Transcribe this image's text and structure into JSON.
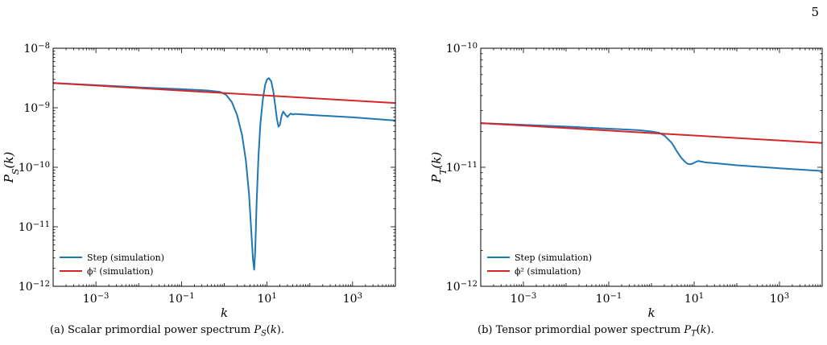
{
  "page_number": "5",
  "colors": {
    "step": "#1f77b4",
    "phi2": "#d62728"
  },
  "captions": {
    "a": "(a) Scalar primordial power spectrum P_S(k).",
    "b": "(b) Tensor primordial power spectrum P_T(k)."
  },
  "chart_data": [
    {
      "type": "line",
      "panel": "a",
      "xlabel": "k",
      "ylabel": "P_S(k)",
      "x_scale": "log",
      "y_scale": "log",
      "xlim": [
        0.0001,
        10000
      ],
      "ylim": [
        1e-12,
        1e-08
      ],
      "x_ticks": [
        0.001,
        0.1,
        10,
        1000
      ],
      "x_tick_labels": [
        "10^{-3}",
        "10^{-1}",
        "10^{1}",
        "10^{3}"
      ],
      "y_ticks": [
        1e-12,
        1e-11,
        1e-10,
        1e-09,
        1e-08
      ],
      "y_tick_labels": [
        "10^{-12}",
        "10^{-11}",
        "10^{-10}",
        "10^{-9}",
        "10^{-8}"
      ],
      "grid": false,
      "legend": "lower-left",
      "series": [
        {
          "name": "Step (simulation)",
          "color": "#1f77b4",
          "x": [
            0.0001,
            0.001,
            0.01,
            0.1,
            0.4,
            0.8,
            1.1,
            1.5,
            2.0,
            2.6,
            3.2,
            3.8,
            4.3,
            4.7,
            5.0,
            5.3,
            5.7,
            6.3,
            7.0,
            8.0,
            9.0,
            10.0,
            11.0,
            12.5,
            14.0,
            15.5,
            17.0,
            18.5,
            20.0,
            22.0,
            24.0,
            27.0,
            30.0,
            33.0,
            36.0,
            40.0,
            45.0,
            55.0,
            100.0,
            1000.0,
            10000.0
          ],
          "y": [
            2.6e-09,
            2.4e-09,
            2.2e-09,
            2.05e-09,
            1.95e-09,
            1.85e-09,
            1.65e-09,
            1.25e-09,
            7.5e-10,
            3.5e-10,
            1.3e-10,
            3.5e-11,
            8e-12,
            2.8e-12,
            1.9e-12,
            4e-12,
            2.5e-11,
            1.5e-10,
            5.5e-10,
            1.4e-09,
            2.4e-09,
            3e-09,
            3.15e-09,
            2.8e-09,
            1.9e-09,
            1.1e-09,
            6.5e-10,
            4.8e-10,
            5.2e-10,
            7.5e-10,
            8.6e-10,
            7.6e-10,
            7e-10,
            7.6e-10,
            8e-10,
            7.7e-10,
            7.9e-10,
            7.8e-10,
            7.6e-10,
            6.9e-10,
            6.1e-10
          ]
        },
        {
          "name": "ϕ² (simulation)",
          "color": "#d62728",
          "x": [
            0.0001,
            10000
          ],
          "y": [
            2.6e-09,
            1.2e-09
          ]
        }
      ]
    },
    {
      "type": "line",
      "panel": "b",
      "xlabel": "k",
      "ylabel": "P_T(k)",
      "x_scale": "log",
      "y_scale": "log",
      "xlim": [
        0.0001,
        10000
      ],
      "ylim": [
        1e-12,
        1e-10
      ],
      "x_ticks": [
        0.001,
        0.1,
        10,
        1000
      ],
      "x_tick_labels": [
        "10^{-3}",
        "10^{-1}",
        "10^{1}",
        "10^{3}"
      ],
      "y_ticks": [
        1e-12,
        1e-11,
        1e-10
      ],
      "y_tick_labels": [
        "10^{-12}",
        "10^{-11}",
        "10^{-10}"
      ],
      "grid": false,
      "legend": "lower-left",
      "series": [
        {
          "name": "Step (simulation)",
          "color": "#1f77b4",
          "x": [
            0.0001,
            0.01,
            0.5,
            1.0,
            1.5,
            2.0,
            3.0,
            4.0,
            5.0,
            6.0,
            7.0,
            8.0,
            9.0,
            10.0,
            11.0,
            12.5,
            14.0,
            16.0,
            18.0,
            25.0,
            100.0,
            1000.0,
            10000.0
          ],
          "y": [
            2.35e-11,
            2.2e-11,
            2.05e-11,
            2e-11,
            1.95e-11,
            1.85e-11,
            1.6e-11,
            1.35e-11,
            1.2e-11,
            1.12e-11,
            1.07e-11,
            1.06e-11,
            1.07e-11,
            1.09e-11,
            1.11e-11,
            1.13e-11,
            1.12e-11,
            1.11e-11,
            1.1e-11,
            1.09e-11,
            1.04e-11,
            9.8e-12,
            9.3e-12
          ]
        },
        {
          "name": "ϕ² (simulation)",
          "color": "#d62728",
          "x": [
            0.0001,
            10000
          ],
          "y": [
            2.35e-11,
            1.6e-11
          ]
        }
      ]
    }
  ]
}
